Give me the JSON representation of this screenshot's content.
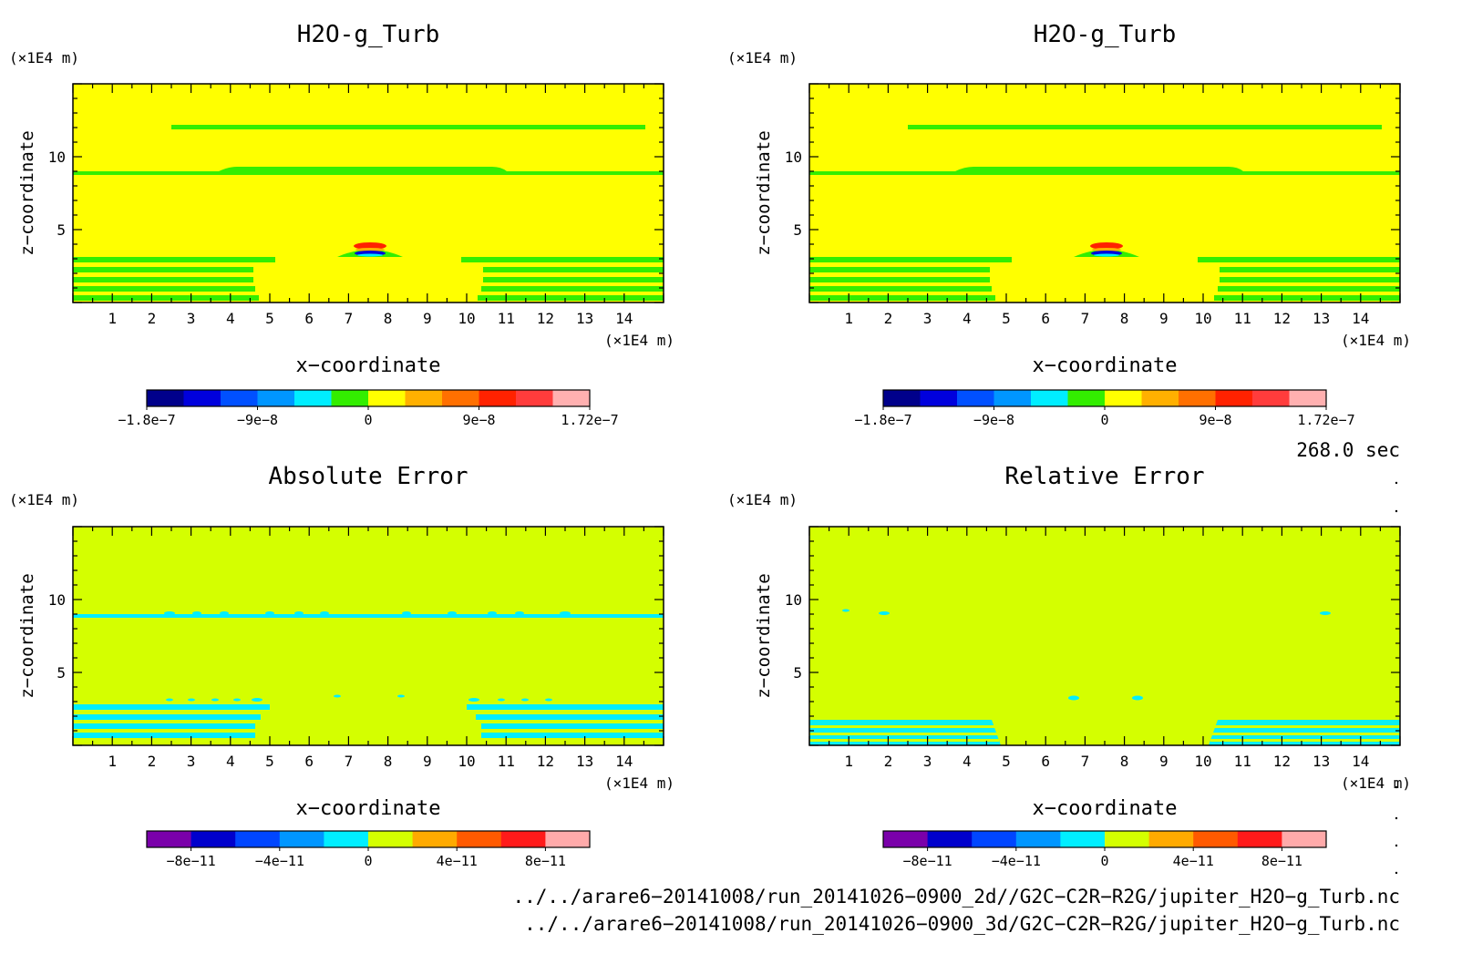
{
  "panels": [
    {
      "id": "p1",
      "title": "H2O-g_Turb",
      "x_unit": "(×1E4 m)",
      "y_unit": "(×1E4 m)",
      "xlabel": "x−coordinate",
      "ylabel": "z−coordinate",
      "background": "#ffff00",
      "colorbar": {
        "colors": [
          "#00008b",
          "#0000dd",
          "#0050ff",
          "#0096ff",
          "#00eeff",
          "#33ee00",
          "#ffff00",
          "#ffb000",
          "#ff7000",
          "#ff2200",
          "#ff3c3c",
          "#ffb0b0"
        ],
        "ticks": [
          {
            "pos": 0.0,
            "label": "−1.8e−7"
          },
          {
            "pos": 0.25,
            "label": "−9e−8"
          },
          {
            "pos": 0.5,
            "label": "0"
          },
          {
            "pos": 0.75,
            "label": "9e−8"
          },
          {
            "pos": 1.0,
            "label": "1.72e−7"
          }
        ]
      }
    },
    {
      "id": "p2",
      "title": "H2O-g_Turb",
      "x_unit": "(×1E4 m)",
      "y_unit": "(×1E4 m)",
      "xlabel": "x−coordinate",
      "ylabel": "z−coordinate",
      "background": "#ffff00",
      "colorbar": {
        "colors": [
          "#00008b",
          "#0000dd",
          "#0050ff",
          "#0096ff",
          "#00eeff",
          "#33ee00",
          "#ffff00",
          "#ffb000",
          "#ff7000",
          "#ff2200",
          "#ff3c3c",
          "#ffb0b0"
        ],
        "ticks": [
          {
            "pos": 0.0,
            "label": "−1.8e−7"
          },
          {
            "pos": 0.25,
            "label": "−9e−8"
          },
          {
            "pos": 0.5,
            "label": "0"
          },
          {
            "pos": 0.75,
            "label": "9e−8"
          },
          {
            "pos": 1.0,
            "label": "1.72e−7"
          }
        ]
      }
    },
    {
      "id": "p3",
      "title": "Absolute Error",
      "x_unit": "(×1E4 m)",
      "y_unit": "(×1E4 m)",
      "xlabel": "x−coordinate",
      "ylabel": "z−coordinate",
      "background": "#d4ff00",
      "colorbar": {
        "colors": [
          "#7a00aa",
          "#0000cc",
          "#0046ff",
          "#0096ff",
          "#00eeff",
          "#d4ff00",
          "#ffaa00",
          "#ff5a00",
          "#ff1a1a",
          "#ffaaaa"
        ],
        "ticks": [
          {
            "pos": 0.1,
            "label": "−8e−11"
          },
          {
            "pos": 0.3,
            "label": "−4e−11"
          },
          {
            "pos": 0.5,
            "label": "0"
          },
          {
            "pos": 0.7,
            "label": "4e−11"
          },
          {
            "pos": 0.9,
            "label": "8e−11"
          }
        ]
      }
    },
    {
      "id": "p4",
      "title": "Relative Error",
      "x_unit": "(×1E4 m)",
      "y_unit": "(×1E4 m)",
      "xlabel": "x−coordinate",
      "ylabel": "z−coordinate",
      "background": "#d4ff00",
      "colorbar": {
        "colors": [
          "#7a00aa",
          "#0000cc",
          "#0046ff",
          "#0096ff",
          "#00eeff",
          "#d4ff00",
          "#ffaa00",
          "#ff5a00",
          "#ff1a1a",
          "#ffaaaa"
        ],
        "ticks": [
          {
            "pos": 0.1,
            "label": "−8e−11"
          },
          {
            "pos": 0.3,
            "label": "−4e−11"
          },
          {
            "pos": 0.5,
            "label": "0"
          },
          {
            "pos": 0.7,
            "label": "4e−11"
          },
          {
            "pos": 0.9,
            "label": "8e−11"
          }
        ]
      }
    }
  ],
  "time_label": "268.0 sec",
  "footer_lines": [
    "../../arare6−20141008/run_20141026−0900_2d//G2C−C2R−R2G/jupiter_H2O−g_Turb.nc",
    "../../arare6−20141008/run_20141026−0900_3d/G2C−C2R−R2G/jupiter_H2O−g_Turb.nc"
  ],
  "chart_data": [
    {
      "type": "heatmap",
      "title": "H2O-g_Turb",
      "xlabel": "x−coordinate",
      "ylabel": "z−coordinate",
      "x_unit": "×1E4 m",
      "y_unit": "×1E4 m",
      "xlim": [
        0,
        15
      ],
      "ylim": [
        0,
        15
      ],
      "x_ticks": [
        1,
        2,
        3,
        4,
        5,
        6,
        7,
        8,
        9,
        10,
        11,
        12,
        13,
        14
      ],
      "y_ticks": [
        5,
        10
      ],
      "background_value": 0,
      "features": [
        {
          "kind": "band",
          "value": 1e-08,
          "x": [
            2.5,
            12.7
          ],
          "z": [
            11.7,
            12.1
          ]
        },
        {
          "kind": "band",
          "value": 1e-08,
          "x": [
            0,
            15
          ],
          "z": [
            8.9,
            9.3
          ]
        },
        {
          "kind": "band",
          "value": 1e-08,
          "x": [
            3.5,
            11.5
          ],
          "z": [
            9.1,
            9.5
          ]
        },
        {
          "kind": "band",
          "value": 1e-08,
          "x": [
            0,
            5.3
          ],
          "z": [
            0,
            3.1
          ]
        },
        {
          "kind": "band",
          "value": 1e-08,
          "x": [
            10.0,
            15
          ],
          "z": [
            0,
            3.1
          ]
        },
        {
          "kind": "blob",
          "value": 1e-08,
          "x": [
            6.8,
            8.3
          ],
          "z": [
            3.0,
            3.7
          ]
        },
        {
          "kind": "blob",
          "value": 1.5e-07,
          "x": [
            7.2,
            7.8
          ],
          "z": [
            3.9,
            4.2
          ]
        },
        {
          "kind": "blob",
          "value": -1.5e-07,
          "x": [
            7.2,
            7.8
          ],
          "z": [
            3.4,
            3.7
          ]
        }
      ],
      "colorbar": {
        "min": -1.8e-07,
        "max": 1.72e-07
      }
    },
    {
      "type": "heatmap",
      "title": "H2O-g_Turb",
      "xlabel": "x−coordinate",
      "ylabel": "z−coordinate",
      "x_unit": "×1E4 m",
      "y_unit": "×1E4 m",
      "xlim": [
        0,
        15
      ],
      "ylim": [
        0,
        15
      ],
      "x_ticks": [
        1,
        2,
        3,
        4,
        5,
        6,
        7,
        8,
        9,
        10,
        11,
        12,
        13,
        14
      ],
      "y_ticks": [
        5,
        10
      ],
      "background_value": 0,
      "features": [
        {
          "kind": "band",
          "value": 1e-08,
          "x": [
            2.5,
            12.7
          ],
          "z": [
            11.7,
            12.1
          ]
        },
        {
          "kind": "band",
          "value": 1e-08,
          "x": [
            0,
            15
          ],
          "z": [
            8.9,
            9.3
          ]
        },
        {
          "kind": "band",
          "value": 1e-08,
          "x": [
            0,
            5.3
          ],
          "z": [
            0,
            3.1
          ]
        },
        {
          "kind": "band",
          "value": 1e-08,
          "x": [
            10.0,
            15
          ],
          "z": [
            0,
            3.1
          ]
        },
        {
          "kind": "blob",
          "value": 1.5e-07,
          "x": [
            7.2,
            7.8
          ],
          "z": [
            3.9,
            4.2
          ]
        },
        {
          "kind": "blob",
          "value": -1.5e-07,
          "x": [
            7.2,
            7.8
          ],
          "z": [
            3.4,
            3.7
          ]
        }
      ],
      "colorbar": {
        "min": -1.8e-07,
        "max": 1.72e-07
      }
    },
    {
      "type": "heatmap",
      "title": "Absolute Error",
      "xlabel": "x−coordinate",
      "ylabel": "z−coordinate",
      "x_unit": "×1E4 m",
      "y_unit": "×1E4 m",
      "xlim": [
        0,
        15
      ],
      "ylim": [
        0,
        15
      ],
      "x_ticks": [
        1,
        2,
        3,
        4,
        5,
        6,
        7,
        8,
        9,
        10,
        11,
        12,
        13,
        14
      ],
      "y_ticks": [
        5,
        10
      ],
      "background_value": 0,
      "features": [
        {
          "kind": "band",
          "value": -1e-11,
          "x": [
            0,
            15
          ],
          "z": [
            8.9,
            9.2
          ]
        },
        {
          "kind": "band",
          "value": -1e-11,
          "x": [
            0,
            5.0
          ],
          "z": [
            0.8,
            2.8
          ]
        },
        {
          "kind": "band",
          "value": -1e-11,
          "x": [
            10.3,
            15
          ],
          "z": [
            0.8,
            2.8
          ]
        }
      ],
      "colorbar": {
        "min": -1e-10,
        "max": 1e-10
      }
    },
    {
      "type": "heatmap",
      "title": "Relative Error",
      "xlabel": "x−coordinate",
      "ylabel": "z−coordinate",
      "x_unit": "×1E4 m",
      "y_unit": "×1E4 m",
      "xlim": [
        0,
        15
      ],
      "ylim": [
        0,
        15
      ],
      "x_ticks": [
        1,
        2,
        3,
        4,
        5,
        6,
        7,
        8,
        9,
        10,
        11,
        12,
        13,
        14
      ],
      "y_ticks": [
        5,
        10
      ],
      "background_value": 0,
      "features": [
        {
          "kind": "band",
          "value": -1e-11,
          "x": [
            0,
            4.6
          ],
          "z": [
            0,
            1.8
          ]
        },
        {
          "kind": "band",
          "value": -1e-11,
          "x": [
            10.3,
            15
          ],
          "z": [
            0,
            1.8
          ]
        }
      ],
      "colorbar": {
        "min": -1e-10,
        "max": 1e-10
      }
    }
  ]
}
